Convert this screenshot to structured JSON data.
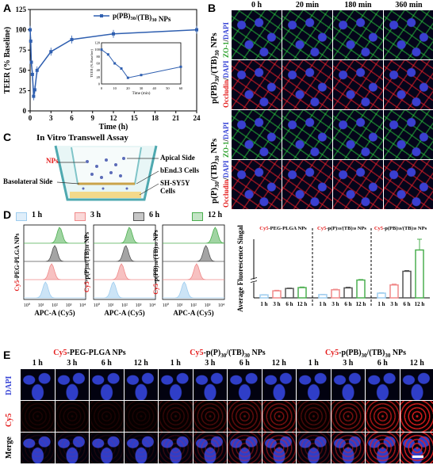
{
  "panels": {
    "A": "A",
    "B": "B",
    "C": "C",
    "D": "D",
    "E": "E"
  },
  "chart_data": [
    {
      "type": "line",
      "legend": "p(PB)30/(TB)30 NPs",
      "xlabel": "Time (h)",
      "ylabel": "TEER (% Baseline)",
      "xlim": [
        0,
        24
      ],
      "ylim": [
        0,
        125
      ],
      "xticks": [
        0,
        3,
        6,
        9,
        12,
        15,
        18,
        21,
        24
      ],
      "yticks": [
        0,
        25,
        50,
        75,
        100,
        125
      ],
      "series": [
        {
          "name": "p(PB)30/(TB)30 NPs",
          "x": [
            0,
            0.083,
            0.17,
            0.33,
            0.5,
            0.67,
            1,
            3,
            6,
            12,
            24
          ],
          "y": [
            100,
            86,
            60,
            45,
            18,
            26,
            50,
            73,
            88,
            95,
            100
          ]
        }
      ],
      "inset": {
        "xlabel": "Time (min)",
        "ylabel": "TEER (% Baseline)",
        "xticks": [
          0,
          10,
          20,
          30,
          40,
          50,
          60
        ],
        "yticks": [
          0,
          20,
          40,
          60,
          80,
          100,
          120
        ],
        "x": [
          0,
          5,
          10,
          15,
          20,
          30,
          60
        ],
        "y": [
          100,
          86,
          60,
          45,
          18,
          26,
          50
        ]
      }
    },
    {
      "type": "bar",
      "ylabel": "Average Fluorescence Singal",
      "groups": [
        "Cy5-PEG-PLGA NPs",
        "Cy5-p(P)30/(TB)30 NPs",
        "Cy5-p(PB)30/(TB)30 NPs"
      ],
      "categories": [
        "1 h",
        "3 h",
        "6 h",
        "12 h"
      ],
      "colors": [
        "#9fcdef",
        "#f08a8a",
        "#555555",
        "#4caf50"
      ],
      "values": [
        [
          20,
          48,
          64,
          70
        ],
        [
          22,
          55,
          68,
          112
        ],
        [
          32,
          88,
          560,
          1650
        ]
      ],
      "errors": [
        [
          2,
          4,
          3,
          4
        ],
        [
          2,
          4,
          5,
          28
        ],
        [
          3,
          6,
          40,
          550
        ]
      ]
    }
  ],
  "B": {
    "cols": [
      "0 h",
      "20 min",
      "180 min",
      "360 min"
    ],
    "rowlabels": [
      {
        "text": "ZO-1/DAPI"
      },
      {
        "text": "Occludin/DAPI"
      },
      {
        "text": "ZO-1/DAPI"
      },
      {
        "text": "Occludin/DAPI"
      }
    ],
    "grouplabels": [
      "p(PB)30/(TB)30 NPs",
      "p(P)30/(TB)30 NPs"
    ]
  },
  "C": {
    "title": "In Vitro Transwell Assay",
    "nps": "NPs",
    "apical": "Apical Side",
    "basolateral": "Basolateral Side",
    "bend": "bEnd.3 Cells",
    "shsy": "SH-SY5Y Cells"
  },
  "D": {
    "legend": [
      "1 h",
      "3 h",
      "6 h",
      "12 h"
    ],
    "xlabel": "APC-A (Cy5)",
    "groups": [
      "Cy5-PEG-PLGA NPs",
      "Cy5-p(P)30/(TB)30 NPs",
      "Cy5-p(PB)30/(TB)30 NPs"
    ],
    "xticks": [
      "10⁰",
      "10¹",
      "10²",
      "10³",
      "10⁴"
    ],
    "bar_xticks": [
      "1 h",
      "3 h",
      "6 h",
      "12 h"
    ]
  },
  "E": {
    "groups": [
      "Cy5-PEG-PLGA NPs",
      "Cy5-p(P)30/(TB)30 NPs",
      "Cy5-p(PB)30/(TB)30 NPs"
    ],
    "cols": [
      "1 h",
      "3 h",
      "6 h",
      "12 h"
    ],
    "rows": [
      "DAPI",
      "Cy5",
      "Merge"
    ]
  }
}
